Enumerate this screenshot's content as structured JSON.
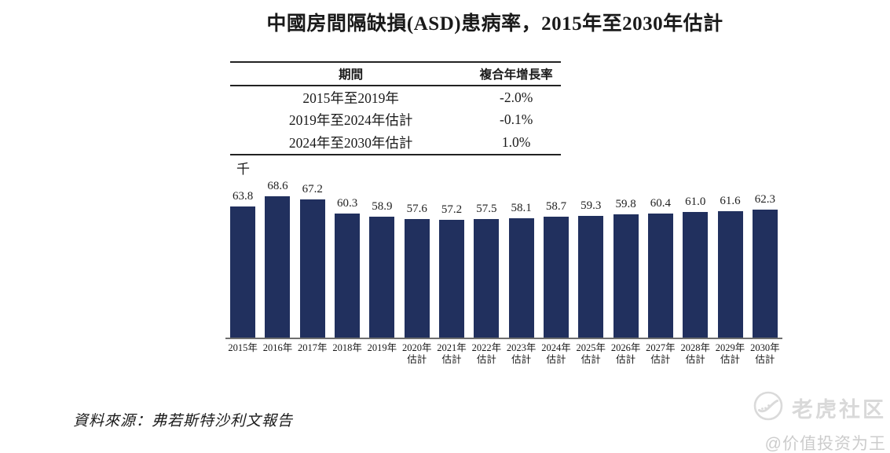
{
  "page": {
    "title": "中國房間隔缺損(ASD)患病率，2015年至2030年估計",
    "source": "資料來源：弗若斯特沙利文報告"
  },
  "cagr_table": {
    "headers": [
      "期間",
      "複合年增長率"
    ],
    "rows": [
      [
        "2015年至2019年",
        "-2.0%"
      ],
      [
        "2019年至2024年估計",
        "-0.1%"
      ],
      [
        "2024年至2030年估計",
        "1.0%"
      ]
    ]
  },
  "chart_data": {
    "type": "bar",
    "title": "中國房間隔缺損(ASD)患病率，2015年至2030年估計",
    "ylabel": "千",
    "xlabel": "",
    "ylim": [
      0,
      70
    ],
    "grid": false,
    "legend": false,
    "bar_color": "#21305e",
    "axis_color": "#6e6e6e",
    "categories": [
      "2015年",
      "2016年",
      "2017年",
      "2018年",
      "2019年",
      "2020年",
      "2021年",
      "2022年",
      "2023年",
      "2024年",
      "2025年",
      "2026年",
      "2027年",
      "2028年",
      "2029年",
      "2030年"
    ],
    "category_notes": [
      "",
      "",
      "",
      "",
      "",
      "估計",
      "估計",
      "估計",
      "估計",
      "估計",
      "估計",
      "估計",
      "估計",
      "估計",
      "估計",
      "估計"
    ],
    "values": [
      63.8,
      68.6,
      67.2,
      60.3,
      58.9,
      57.6,
      57.2,
      57.5,
      58.1,
      58.7,
      59.3,
      59.8,
      60.4,
      61.0,
      61.6,
      62.3
    ],
    "labels": [
      "63.8",
      "68.6",
      "67.2",
      "60.3",
      "58.9",
      "57.6",
      "57.2",
      "57.5",
      "58.1",
      "58.7",
      "59.3",
      "59.8",
      "60.4",
      "61.0",
      "61.6",
      "62.3"
    ]
  },
  "watermark": {
    "brand": "老虎社区",
    "handle": "@价值投资为王"
  }
}
